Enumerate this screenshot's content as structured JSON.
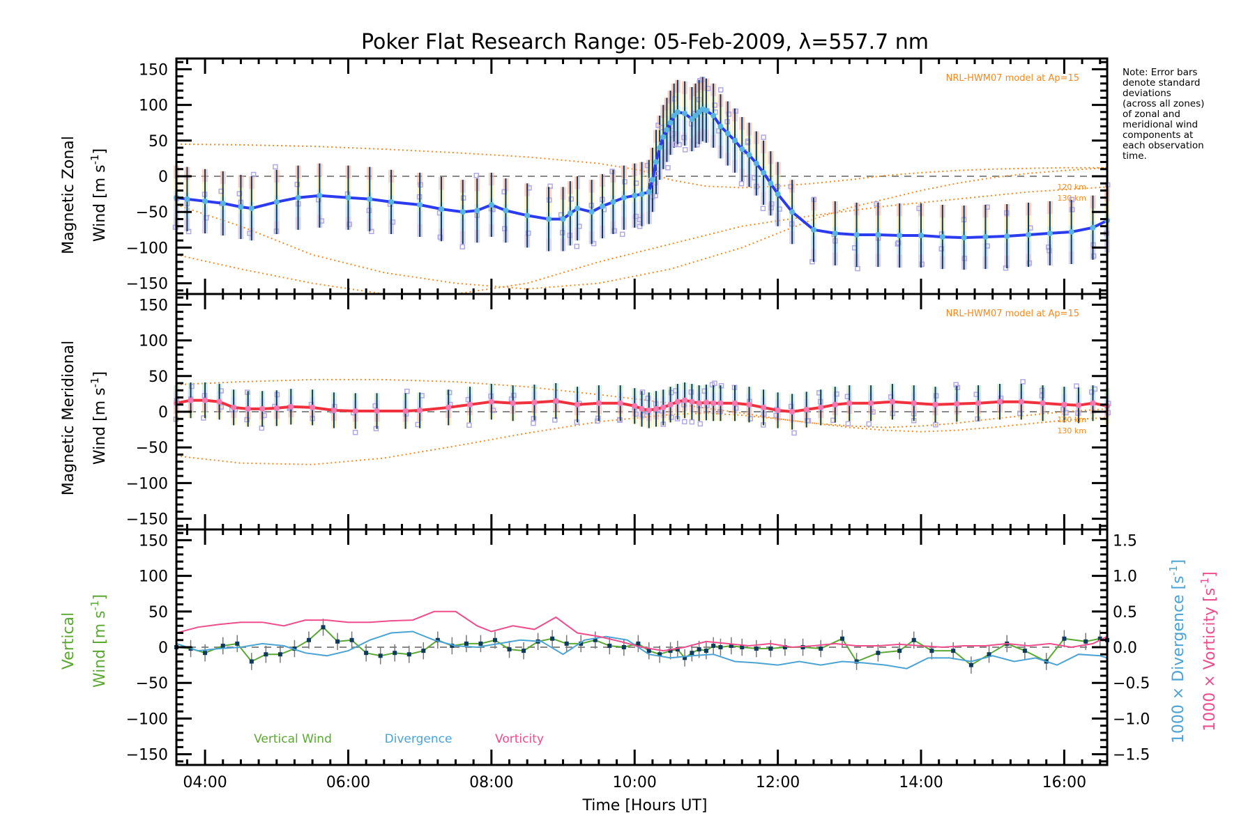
{
  "chart_data": [
    {
      "panel": "zonal",
      "type": "line",
      "title": "Poker Flat Research Range: 05-Feb-2009, λ=557.7 nm",
      "xlabel": "",
      "ylabel_line1": "Magnetic Zonal",
      "ylabel_line2": "Wind [m s",
      "ylabel_sup": "-1",
      "ylabel_close": "]",
      "xlim_hours": [
        3.6,
        16.6
      ],
      "ylim": [
        -165,
        165
      ],
      "yticks": [
        -150,
        -100,
        -50,
        0,
        50,
        100,
        150
      ],
      "ytick_labels": [
        "−150",
        "−100",
        "−50",
        "0",
        "50",
        "100",
        "150"
      ],
      "model_label": "NRL-HWM07 model at Ap=15",
      "altitude_labels": [
        "120 km",
        "130 km"
      ],
      "note": [
        "Note: Error bars",
        "denote standard",
        "deviations",
        "(across all zones)",
        "of zonal and",
        "meridional wind",
        "components at",
        "each observation",
        "time."
      ],
      "series": [
        {
          "name": "Mean zonal wind",
          "color": "#2b3bf0",
          "marker_color": "#5ab4e0",
          "x": [
            3.6,
            3.75,
            4.0,
            4.25,
            4.5,
            4.65,
            5.0,
            5.3,
            5.6,
            6.0,
            6.3,
            6.6,
            7.0,
            7.3,
            7.6,
            7.8,
            8.0,
            8.2,
            8.5,
            8.8,
            9.0,
            9.1,
            9.2,
            9.4,
            9.55,
            9.7,
            9.85,
            10.0,
            10.1,
            10.2,
            10.25,
            10.3,
            10.35,
            10.4,
            10.45,
            10.5,
            10.55,
            10.6,
            10.7,
            10.8,
            10.85,
            10.9,
            10.95,
            11.0,
            11.1,
            11.2,
            11.3,
            11.4,
            11.5,
            11.6,
            11.7,
            11.8,
            11.9,
            12.0,
            12.2,
            12.5,
            12.8,
            13.1,
            13.4,
            13.7,
            14.0,
            14.3,
            14.6,
            14.9,
            15.2,
            15.5,
            15.8,
            16.1,
            16.4,
            16.6
          ],
          "y": [
            -30,
            -32,
            -35,
            -38,
            -43,
            -45,
            -36,
            -30,
            -27,
            -30,
            -32,
            -36,
            -40,
            -46,
            -50,
            -48,
            -40,
            -48,
            -55,
            -60,
            -60,
            -52,
            -45,
            -50,
            -42,
            -36,
            -30,
            -27,
            -25,
            -22,
            -5,
            20,
            40,
            55,
            65,
            75,
            85,
            90,
            88,
            80,
            85,
            90,
            94,
            92,
            85,
            70,
            60,
            50,
            38,
            30,
            18,
            5,
            -10,
            -25,
            -50,
            -75,
            -80,
            -82,
            -82,
            -83,
            -83,
            -85,
            -86,
            -85,
            -84,
            -82,
            -80,
            -78,
            -72,
            -62
          ],
          "error_bar_halfwidth": 45
        },
        {
          "name": "NRL-HWM07 120 km",
          "color": "#f58a1f",
          "style": "dotted",
          "x": [
            3.6,
            4.5,
            5.5,
            6.5,
            7.5,
            8.5,
            9.5,
            10.1,
            10.5,
            11.0,
            11.5,
            12.0,
            12.5,
            13.0,
            13.5,
            14.0,
            14.5,
            15.0,
            15.5,
            16.0,
            16.6
          ],
          "y": [
            45,
            44,
            42,
            38,
            33,
            27,
            18,
            8,
            -5,
            -14,
            -16,
            -14,
            -10,
            -5,
            1,
            5,
            8,
            10,
            11,
            12,
            12
          ]
        },
        {
          "name": "NRL-HWM07 130 km",
          "color": "#f58a1f",
          "style": "dotted",
          "x": [
            3.6,
            4.5,
            5.5,
            6.5,
            7.5,
            8.5,
            9.5,
            10.5,
            11.5,
            12.0,
            12.5,
            13.0,
            13.5,
            14.0,
            14.5,
            15.0,
            15.5,
            16.0,
            16.6
          ],
          "y": [
            -40,
            -70,
            -110,
            -135,
            -150,
            -158,
            -150,
            -130,
            -100,
            -80,
            -60,
            -44,
            -32,
            -20,
            -10,
            -2,
            4,
            8,
            12
          ]
        },
        {
          "name": "NRL-HWM07 low altitude",
          "color": "#f58a1f",
          "style": "dotted",
          "x": [
            3.6,
            4.5,
            5.5,
            6.5,
            7.5,
            8.5,
            9.5,
            10.5,
            11.5,
            12.5,
            13.5,
            14.5,
            15.5,
            16.6
          ],
          "y": [
            -110,
            -130,
            -150,
            -165,
            -165,
            -150,
            -120,
            -95,
            -70,
            -55,
            -42,
            -32,
            -22,
            -15
          ]
        }
      ]
    },
    {
      "panel": "meridional",
      "type": "line",
      "ylabel_line1": "Magnetic Meridional",
      "ylabel_line2": "Wind [m s",
      "ylabel_sup": "-1",
      "ylabel_close": "]",
      "xlim_hours": [
        3.6,
        16.6
      ],
      "ylim": [
        -165,
        165
      ],
      "yticks": [
        -150,
        -100,
        -50,
        0,
        50,
        100,
        150
      ],
      "ytick_labels": [
        "−150",
        "−100",
        "−50",
        "0",
        "50",
        "100",
        "150"
      ],
      "model_label": "NRL-HWM07 model at Ap=15",
      "altitude_labels": [
        "120 km",
        "130 km"
      ],
      "series": [
        {
          "name": "Mean meridional wind",
          "color": "#f0303c",
          "marker_color": "#f07ab0",
          "x": [
            3.6,
            3.8,
            4.0,
            4.2,
            4.4,
            4.6,
            4.8,
            5.0,
            5.2,
            5.5,
            5.8,
            6.1,
            6.4,
            6.8,
            7.0,
            7.4,
            7.7,
            8.0,
            8.3,
            8.6,
            8.9,
            9.2,
            9.5,
            9.8,
            10.0,
            10.1,
            10.2,
            10.3,
            10.4,
            10.5,
            10.6,
            10.7,
            10.8,
            10.9,
            11.0,
            11.1,
            11.2,
            11.4,
            11.6,
            11.8,
            12.0,
            12.2,
            12.4,
            12.6,
            12.8,
            13.0,
            13.3,
            13.6,
            13.9,
            14.2,
            14.5,
            14.8,
            15.1,
            15.4,
            15.7,
            16.0,
            16.2,
            16.4,
            16.6
          ],
          "y": [
            12,
            16,
            16,
            14,
            6,
            4,
            4,
            5,
            7,
            6,
            2,
            1,
            1,
            1,
            2,
            6,
            10,
            14,
            12,
            13,
            15,
            10,
            12,
            12,
            8,
            4,
            2,
            4,
            6,
            10,
            14,
            16,
            14,
            12,
            13,
            12,
            12,
            12,
            10,
            6,
            2,
            0,
            3,
            6,
            10,
            12,
            12,
            14,
            12,
            10,
            11,
            12,
            14,
            14,
            12,
            10,
            9,
            12,
            8
          ],
          "error_bar_halfwidth": 25
        },
        {
          "name": "NRL-HWM07 120 km",
          "color": "#f58a1f",
          "style": "dotted",
          "x": [
            3.6,
            4.5,
            5.5,
            6.5,
            7.5,
            8.5,
            9.5,
            10.5,
            11.0,
            11.5,
            12.0,
            12.5,
            13.0,
            13.5,
            14.0,
            14.5,
            15.0,
            15.5,
            16.0,
            16.6
          ],
          "y": [
            38,
            42,
            45,
            45,
            42,
            35,
            24,
            12,
            5,
            -2,
            -10,
            -16,
            -20,
            -22,
            -20,
            -16,
            -10,
            -5,
            0,
            4
          ]
        },
        {
          "name": "NRL-HWM07 130 km",
          "color": "#f58a1f",
          "style": "dotted",
          "x": [
            3.6,
            4.5,
            5.5,
            6.5,
            7.5,
            8.5,
            9.5,
            10.5,
            11.0,
            11.5,
            12.0,
            12.5,
            13.0,
            13.5,
            14.0,
            14.5,
            15.0,
            15.5,
            16.0,
            16.6
          ],
          "y": [
            -62,
            -72,
            -74,
            -65,
            -48,
            -30,
            -14,
            -4,
            -2,
            -5,
            -10,
            -16,
            -22,
            -26,
            -28,
            -26,
            -22,
            -17,
            -12,
            -8
          ]
        }
      ]
    },
    {
      "panel": "vertical",
      "type": "line",
      "xlabel": "Time [Hours UT]",
      "ylabel_line1": "Vertical",
      "ylabel_line2": "Wind [m s",
      "ylabel_sup": "-1",
      "ylabel_close": "]",
      "right_ylabel1": "1000 × Divergence [s",
      "right_ylabel2": "1000 × Vorticity [s",
      "right_ylabel_sup": "-1",
      "right_ylabel_close": "]",
      "xlim_hours": [
        3.6,
        16.6
      ],
      "ylim": [
        -165,
        165
      ],
      "yticks": [
        -150,
        -100,
        -50,
        0,
        50,
        100,
        150
      ],
      "ytick_labels": [
        "−150",
        "−100",
        "−50",
        "0",
        "50",
        "100",
        "150"
      ],
      "right_ylim": [
        -1.65,
        1.65
      ],
      "right_yticks": [
        -1.5,
        -1.0,
        -0.5,
        0.0,
        0.5,
        1.0,
        1.5
      ],
      "right_ytick_labels": [
        "−1.5",
        "−1.0",
        "−0.5",
        "0.0",
        "0.5",
        "1.0",
        "1.5"
      ],
      "xticks_hours": [
        4,
        6,
        8,
        10,
        12,
        14,
        16
      ],
      "xtick_labels": [
        "04:00",
        "06:00",
        "08:00",
        "10:00",
        "12:00",
        "14:00",
        "16:00"
      ],
      "legend": [
        {
          "label": "Vertical Wind",
          "color": "#5aa832"
        },
        {
          "label": "Divergence",
          "color": "#4ba3d4"
        },
        {
          "label": "Vorticity",
          "color": "#ef4c8c"
        }
      ],
      "series": [
        {
          "name": "Vertical Wind",
          "color": "#5aa832",
          "marker_color": "#0e3a5c",
          "x": [
            3.6,
            3.8,
            4.0,
            4.25,
            4.45,
            4.65,
            4.85,
            5.05,
            5.25,
            5.45,
            5.65,
            5.85,
            6.05,
            6.25,
            6.45,
            6.65,
            6.85,
            7.05,
            7.25,
            7.45,
            7.65,
            7.85,
            8.05,
            8.25,
            8.45,
            8.65,
            8.85,
            9.05,
            9.25,
            9.45,
            9.65,
            9.85,
            10.05,
            10.2,
            10.35,
            10.5,
            10.6,
            10.7,
            10.8,
            10.9,
            11.0,
            11.1,
            11.2,
            11.35,
            11.5,
            11.7,
            11.9,
            12.1,
            12.35,
            12.6,
            12.9,
            13.1,
            13.4,
            13.7,
            13.9,
            14.15,
            14.45,
            14.7,
            14.95,
            15.2,
            15.45,
            15.75,
            16.0,
            16.3,
            16.5,
            16.6
          ],
          "y": [
            0,
            -2,
            -8,
            2,
            5,
            -20,
            -10,
            -10,
            -2,
            10,
            28,
            8,
            10,
            -8,
            -12,
            -8,
            -10,
            -5,
            10,
            2,
            5,
            5,
            10,
            -3,
            -5,
            8,
            12,
            5,
            5,
            10,
            2,
            0,
            5,
            -5,
            -10,
            -5,
            -3,
            -15,
            -8,
            -3,
            -5,
            2,
            0,
            2,
            0,
            -2,
            -2,
            0,
            0,
            -2,
            12,
            -20,
            -8,
            -5,
            10,
            -5,
            -5,
            -25,
            -10,
            5,
            -5,
            -20,
            12,
            8,
            12,
            10
          ],
          "error_bar_halfwidth": 12
        },
        {
          "name": "Divergence",
          "axis": "right",
          "color": "#4ba3d4",
          "x": [
            3.6,
            3.9,
            4.2,
            4.5,
            4.8,
            5.1,
            5.4,
            5.7,
            6.0,
            6.3,
            6.6,
            6.9,
            7.2,
            7.5,
            7.8,
            8.1,
            8.4,
            8.7,
            9.0,
            9.3,
            9.6,
            9.9,
            10.2,
            10.5,
            10.8,
            11.1,
            11.4,
            11.7,
            12.0,
            12.3,
            12.6,
            12.9,
            13.2,
            13.5,
            13.8,
            14.1,
            14.4,
            14.7,
            15.0,
            15.3,
            15.6,
            15.9,
            16.2,
            16.5,
            16.6
          ],
          "y": [
            0.05,
            -0.05,
            -0.02,
            0.0,
            0.05,
            0.02,
            -0.08,
            -0.12,
            -0.05,
            0.1,
            0.2,
            0.22,
            0.1,
            0.02,
            0.0,
            0.05,
            0.1,
            0.08,
            -0.1,
            0.1,
            0.15,
            0.1,
            -0.1,
            -0.15,
            -0.12,
            -0.1,
            -0.2,
            -0.22,
            -0.25,
            -0.2,
            -0.25,
            -0.2,
            -0.22,
            -0.25,
            -0.3,
            -0.15,
            -0.15,
            -0.2,
            -0.12,
            -0.2,
            -0.15,
            -0.25,
            -0.1,
            -0.12,
            -0.15
          ]
        },
        {
          "name": "Vorticity",
          "axis": "right",
          "color": "#ef4c8c",
          "x": [
            3.6,
            3.9,
            4.2,
            4.5,
            4.8,
            5.1,
            5.4,
            5.7,
            6.0,
            6.3,
            6.6,
            6.9,
            7.2,
            7.5,
            7.8,
            8.0,
            8.3,
            8.6,
            8.9,
            9.2,
            9.5,
            9.8,
            10.1,
            10.4,
            10.7,
            11.0,
            11.3,
            11.6,
            11.9,
            12.2,
            12.5,
            12.8,
            13.1,
            13.4,
            13.7,
            14.0,
            14.3,
            14.6,
            14.9,
            15.2,
            15.5,
            15.8,
            16.1,
            16.4,
            16.6
          ],
          "y": [
            0.2,
            0.28,
            0.32,
            0.35,
            0.35,
            0.3,
            0.38,
            0.38,
            0.35,
            0.35,
            0.37,
            0.38,
            0.5,
            0.5,
            0.3,
            0.22,
            0.3,
            0.25,
            0.42,
            0.2,
            0.15,
            0.08,
            0.0,
            -0.05,
            0.0,
            0.08,
            0.05,
            0.02,
            0.05,
            0.0,
            0.02,
            0.05,
            0.02,
            0.02,
            0.04,
            0.02,
            0.0,
            0.02,
            0.02,
            0.05,
            0.02,
            0.05,
            0.0,
            0.05,
            0.15
          ]
        }
      ]
    }
  ]
}
